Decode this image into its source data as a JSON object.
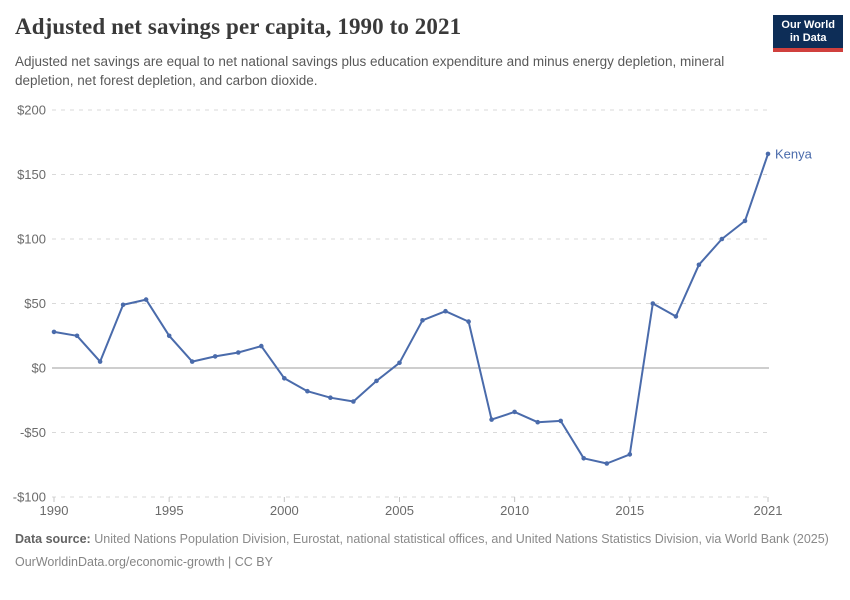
{
  "header": {
    "title": "Adjusted net savings per capita, 1990 to 2021",
    "subtitle": "Adjusted net savings are equal to net national savings plus education expenditure and minus energy depletion, mineral depletion, net forest depletion, and carbon dioxide.",
    "logo": {
      "line1": "Our World",
      "line2": "in Data",
      "background_color": "#0d2d57",
      "accent_color": "#d0403d"
    }
  },
  "chart_data": {
    "type": "line",
    "title": "Adjusted net savings per capita, 1990 to 2021",
    "xlabel": "",
    "ylabel": "",
    "xlim": [
      1990,
      2021
    ],
    "ylim": [
      -100,
      200
    ],
    "grid": "horizontal-dashed",
    "zero_line": true,
    "legend_position": "end-of-line-label",
    "x_ticks": [
      1990,
      1995,
      2000,
      2005,
      2010,
      2015,
      2021
    ],
    "y_ticks": [
      {
        "value": 200,
        "label": "$200"
      },
      {
        "value": 150,
        "label": "$150"
      },
      {
        "value": 100,
        "label": "$100"
      },
      {
        "value": 50,
        "label": "$50"
      },
      {
        "value": 0,
        "label": "$0"
      },
      {
        "value": -50,
        "label": "-$50"
      },
      {
        "value": -100,
        "label": "-$100"
      }
    ],
    "series": [
      {
        "name": "Kenya",
        "color": "#4a6bab",
        "x": [
          1990,
          1991,
          1992,
          1993,
          1994,
          1995,
          1996,
          1997,
          1998,
          1999,
          2000,
          2001,
          2002,
          2003,
          2004,
          2005,
          2006,
          2007,
          2008,
          2009,
          2010,
          2011,
          2012,
          2013,
          2014,
          2015,
          2016,
          2017,
          2018,
          2019,
          2020,
          2021
        ],
        "values": [
          28,
          25,
          5,
          49,
          53,
          25,
          5,
          9,
          12,
          17,
          -8,
          -18,
          -23,
          -26,
          -10,
          4,
          37,
          44,
          36,
          -40,
          -34,
          -42,
          -41,
          -70,
          -74,
          -67,
          50,
          40,
          80,
          100,
          114,
          166
        ]
      }
    ]
  },
  "footer": {
    "data_source_label": "Data source:",
    "data_source_text": "United Nations Population Division, Eurostat, national statistical offices, and United Nations Statistics Division, via World Bank (2025)",
    "link_text": "OurWorldinData.org/economic-growth | CC BY"
  }
}
